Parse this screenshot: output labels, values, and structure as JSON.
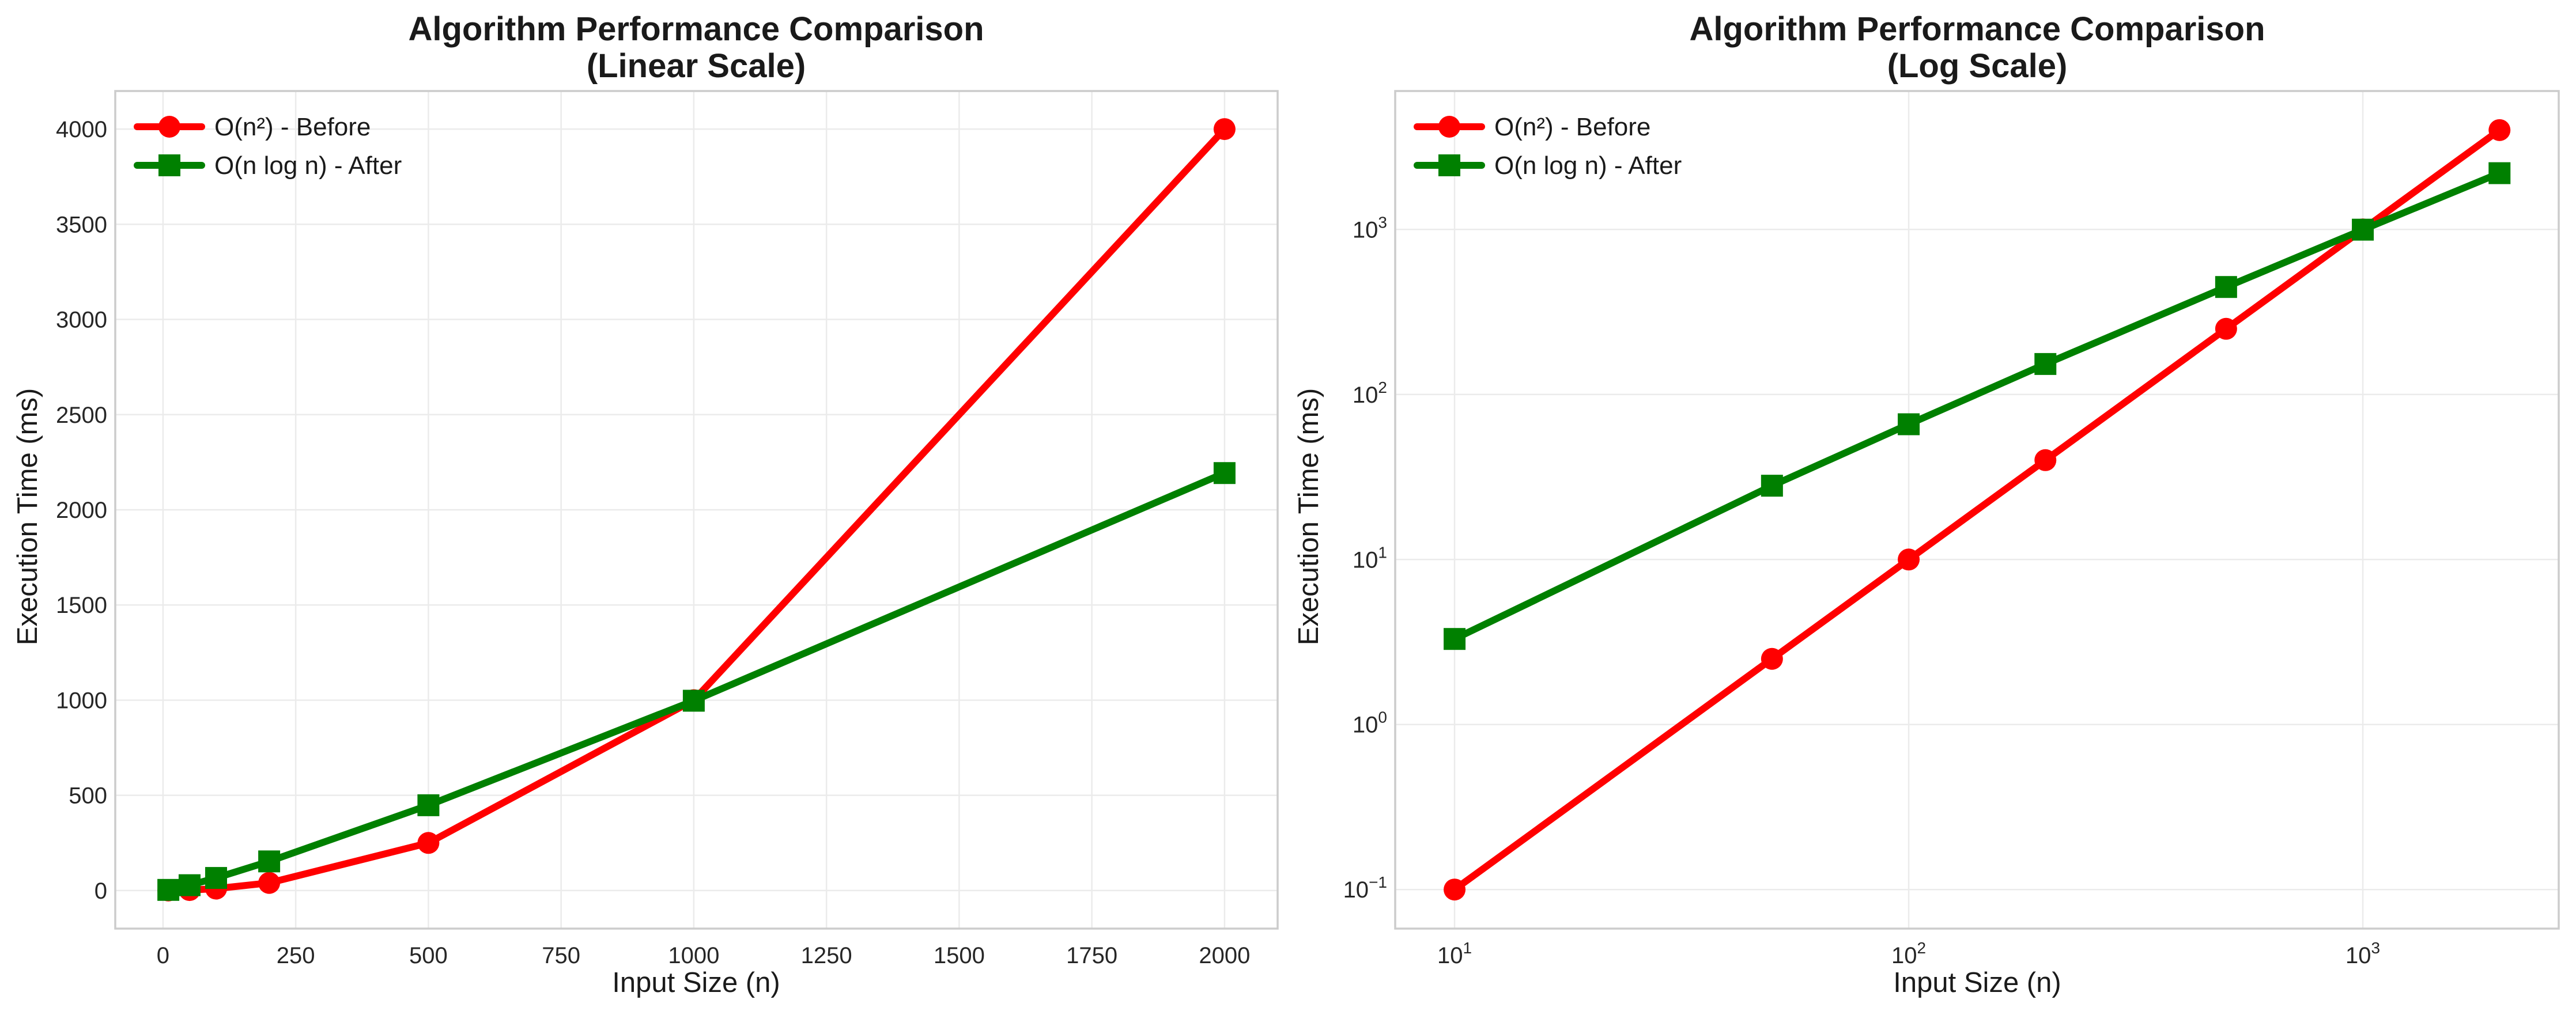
{
  "chart_data": [
    {
      "type": "line",
      "title_line1": "Algorithm Performance Comparison",
      "title_line2": "(Linear Scale)",
      "xlabel": "Input Size (n)",
      "ylabel": "Execution Time (ms)",
      "xscale": "linear",
      "yscale": "linear",
      "xlim": [
        -90,
        2100
      ],
      "ylim": [
        -200,
        4200
      ],
      "xticks": [
        0,
        250,
        500,
        750,
        1000,
        1250,
        1500,
        1750,
        2000
      ],
      "xtick_labels": [
        "0",
        "250",
        "500",
        "750",
        "1000",
        "1250",
        "1500",
        "1750",
        "2000"
      ],
      "yticks": [
        0,
        500,
        1000,
        1500,
        2000,
        2500,
        3000,
        3500,
        4000
      ],
      "ytick_labels": [
        "0",
        "500",
        "1000",
        "1500",
        "2000",
        "2500",
        "3000",
        "3500",
        "4000"
      ],
      "grid": true,
      "legend_position": "top-left",
      "series": [
        {
          "name": "O(n²) - Before",
          "color": "#ff0000",
          "marker": "circle",
          "x": [
            10,
            50,
            100,
            200,
            500,
            1000,
            2000
          ],
          "y": [
            0.1,
            2.5,
            10,
            40,
            250,
            1000,
            4000
          ]
        },
        {
          "name": "O(n log n) - After",
          "color": "#008000",
          "marker": "square",
          "x": [
            10,
            50,
            100,
            200,
            500,
            1000,
            2000
          ],
          "y": [
            3.3,
            28,
            66,
            153,
            448,
            997,
            2193
          ]
        }
      ]
    },
    {
      "type": "line",
      "title_line1": "Algorithm Performance Comparison",
      "title_line2": "(Log Scale)",
      "xlabel": "Input Size (n)",
      "ylabel": "Execution Time (ms)",
      "xscale": "log",
      "yscale": "log",
      "xlim": [
        7.4,
        2700
      ],
      "ylim": [
        0.058,
        6900
      ],
      "xticks": [
        10,
        100,
        1000
      ],
      "xtick_labels": [
        [
          "10",
          "1"
        ],
        [
          "10",
          "2"
        ],
        [
          "10",
          "3"
        ]
      ],
      "yticks": [
        0.1,
        1,
        10,
        100,
        1000
      ],
      "ytick_labels": [
        [
          "10",
          "−1"
        ],
        [
          "10",
          "0"
        ],
        [
          "10",
          "1"
        ],
        [
          "10",
          "2"
        ],
        [
          "10",
          "3"
        ]
      ],
      "grid": true,
      "legend_position": "top-left",
      "series": [
        {
          "name": "O(n²) - Before",
          "color": "#ff0000",
          "marker": "circle",
          "x": [
            10,
            50,
            100,
            200,
            500,
            1000,
            2000
          ],
          "y": [
            0.1,
            2.5,
            10,
            40,
            250,
            1000,
            4000
          ]
        },
        {
          "name": "O(n log n) - After",
          "color": "#008000",
          "marker": "square",
          "x": [
            10,
            50,
            100,
            200,
            500,
            1000,
            2000
          ],
          "y": [
            3.3,
            28,
            66,
            153,
            448,
            997,
            2193
          ]
        }
      ]
    }
  ]
}
